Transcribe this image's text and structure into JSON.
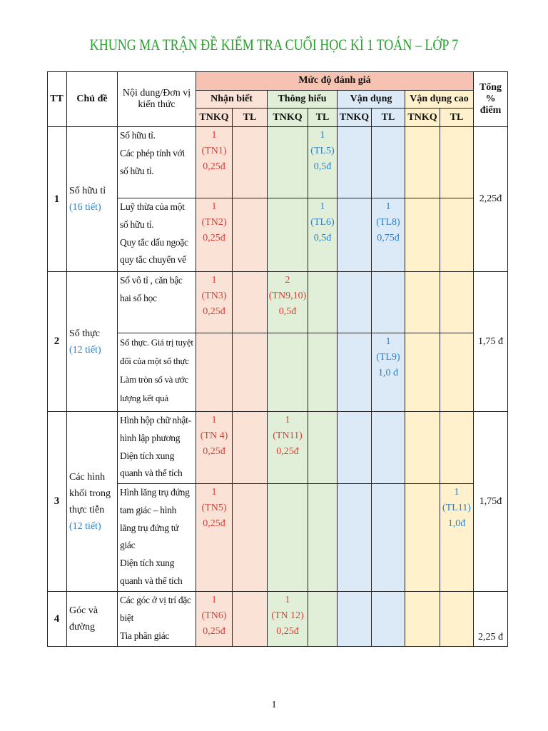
{
  "title": "KHUNG MA TRẬN ĐỀ KIỂM TRA CUỐI HỌC KÌ 1 TOÁN – LỚP 7",
  "header": {
    "tt": "TT",
    "topic": "Chủ đề",
    "content_line1": "Nội dung/Đơn vị",
    "content_line2": "kiến thức",
    "level": "Mức độ đánh giá",
    "total_line1": "Tổng",
    "total_line2": "%",
    "total_line3": "điểm",
    "levels": [
      "Nhận biết",
      "Thông hiểu",
      "Vận dụng",
      "Vận dụng cao"
    ],
    "sub": [
      "TNKQ",
      "TL",
      "TNKQ",
      "TL",
      "TNKQ",
      "TL",
      "TNKQ",
      "TL"
    ]
  },
  "topics": [
    {
      "tt": "1",
      "name": "Số hữu tỉ",
      "lessons": "(16 tiết)",
      "total": "2,25đ"
    },
    {
      "tt": "2",
      "name": "Số thực",
      "lessons": "(12 tiết)",
      "total": "1,75 đ"
    },
    {
      "tt": "3",
      "name_lines": [
        "Các hình",
        "khối trong",
        "thực tiễn"
      ],
      "lessons": "(12 tiết)",
      "total": "1,75đ"
    },
    {
      "tt": "4",
      "name_lines": [
        "Góc và",
        "đường"
      ],
      "total": "2,25 đ"
    }
  ],
  "rows": [
    {
      "content": [
        "Số hữu tỉ.",
        "Các phép tính với",
        "số hữu tỉ."
      ],
      "nb_tnkq": [
        "1",
        "(TN1)",
        "0,25đ"
      ],
      "th_tl": [
        "1",
        "(TL5)",
        "0,5đ"
      ]
    },
    {
      "content": [
        "Luỹ thừa của một",
        "số hữu tỉ.",
        "Quy tắc dấu ngoặc",
        "quy tắc chuyển vế"
      ],
      "nb_tnkq": [
        "1",
        "(TN2)",
        "0,25đ"
      ],
      "th_tl": [
        "1",
        "(TL6)",
        "0,5đ"
      ],
      "vd_tl": [
        "1",
        "(TL8)",
        "0,75đ"
      ]
    },
    {
      "content": [
        "Số vô tỉ , căn bậc",
        "hai số học"
      ],
      "nb_tnkq": [
        "1",
        "(TN3)",
        "0,25đ"
      ],
      "th_tnkq": [
        "2",
        "(TN9,10)",
        "0,5đ"
      ]
    },
    {
      "content": [
        "Số thực. Giá trị tuyệt",
        "đối của một số thực",
        "Làm tròn số và ước",
        "lượng kết quả"
      ],
      "vd_tl": [
        "1",
        "(TL9)",
        "1,0 đ"
      ]
    },
    {
      "content": [
        "Hình hộp chữ nhật-",
        "hình lập phương",
        "Diện tích xung",
        "quanh và thể tích"
      ],
      "nb_tnkq": [
        "1",
        "(TN 4)",
        "0,25đ"
      ],
      "th_tnkq": [
        "1",
        "(TN11)",
        "0,25đ"
      ]
    },
    {
      "content": [
        "Hình lăng trụ đứng",
        "tam giác – hình",
        "lăng trụ đứng tứ",
        "giác",
        "Diện tích xung",
        "quanh và thể tích"
      ],
      "nb_tnkq": [
        "1",
        "(TN5)",
        "0,25đ"
      ],
      "vdc_tl": [
        "1",
        "(TL11)",
        "1,0đ"
      ]
    },
    {
      "content": [
        "Các góc ở vị trí đặc",
        "biệt",
        "Tia phân giác"
      ],
      "nb_tnkq": [
        "1",
        "(TN6)",
        "0,25đ"
      ],
      "th_tnkq": [
        "1",
        "(TN 12)",
        "0,25đ"
      ]
    }
  ],
  "page_number": "1"
}
